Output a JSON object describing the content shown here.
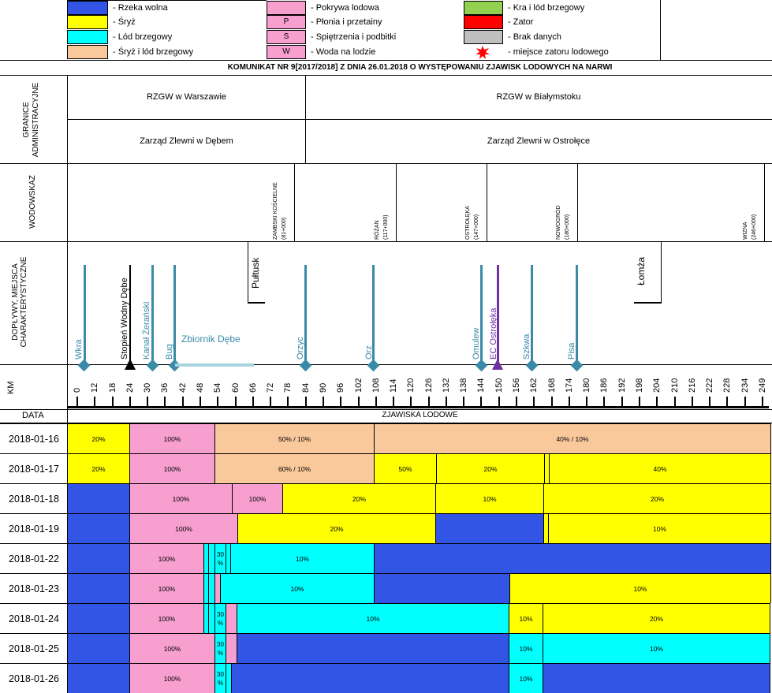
{
  "legend": [
    {
      "color": "#3355e6",
      "label": "- Rzeka wolna"
    },
    {
      "color": "#ffff00",
      "label": "- Śryż"
    },
    {
      "color": "#00ffff",
      "label": "- Lód brzegowy"
    },
    {
      "color": "#f9c89b",
      "label": "- Śryż i lód brzegowy"
    },
    {
      "color": "#f79fcf",
      "label": "- Pokrywa lodowa"
    },
    {
      "color": "#f79fcf",
      "code": "P",
      "label": "- Płonia i przetainy"
    },
    {
      "color": "#f79fcf",
      "code": "S",
      "label": "- Spiętrzenia i podbitki"
    },
    {
      "color": "#f79fcf",
      "code": "W",
      "label": "- Woda na lodzie"
    },
    {
      "color": "#92d050",
      "label": "- Kra i lód brzegowy"
    },
    {
      "color": "#ff0000",
      "label": "- Zator"
    },
    {
      "color": "#bfbfbf",
      "label": "- Brak danych"
    },
    {
      "icon": "red-star-icon",
      "color": "#ff0000",
      "label": "- miejsce zatoru lodowego"
    }
  ],
  "title": "KOMUNIKAT NR 9[2017/2018] Z DNIA 26.01.2018 O WYSTĘPOWANIU ZJAWISK LODOWYCH NA NARWI",
  "admin": {
    "label": "GRANICE ADMINISTRACYJNE",
    "rzgw": [
      "RZGW w Warszawie",
      "RZGW w Białymstoku"
    ],
    "zarzad": [
      "Zarząd Zlewni w Dębem",
      "Zarząd Zlewni w Ostrołęce"
    ]
  },
  "wodowskaz": {
    "label": "WODOWSKAZ",
    "gauges": [
      {
        "name": "ZAMBSKI KOŚCIELNE",
        "km": "(81+000)"
      },
      {
        "name": "RÓŻAN",
        "km": "(117+000)"
      },
      {
        "name": "OSTROŁĘKA",
        "km": "(147+000)"
      },
      {
        "name": "NOWOGRÓD",
        "km": "(180+000)"
      },
      {
        "name": "WIZNA",
        "km": "(246+000)"
      }
    ]
  },
  "doplywy": {
    "label": "DOPŁYWY, MIEJSCA CHARAKTERYSTYCZNE",
    "tributaries": [
      "Wkra",
      "Kanał Żerański",
      "Bug",
      "Orzyc",
      "Orz",
      "Omulew",
      "Szkwa",
      "Pisa"
    ],
    "dam": "Stopień Wodny Dębe",
    "reservoir": "Zbiornik Dębe",
    "plant": "EC Ostrołęka",
    "towns": [
      "Pułtusk",
      "Łomża"
    ]
  },
  "km": {
    "label": "KM",
    "ticks": [
      "0",
      "12",
      "18",
      "24",
      "30",
      "36",
      "42",
      "48",
      "54",
      "60",
      "66",
      "72",
      "78",
      "84",
      "90",
      "96",
      "102",
      "108",
      "114",
      "120",
      "126",
      "132",
      "138",
      "144",
      "150",
      "156",
      "162",
      "168",
      "174",
      "180",
      "186",
      "192",
      "198",
      "204",
      "210",
      "216",
      "222",
      "228",
      "234",
      "249"
    ]
  },
  "table": {
    "date_header": "DATA",
    "phen_header": "ZJAWISKA LODOWE",
    "rows": [
      {
        "date": "2018-01-16",
        "segs": [
          {
            "c": "Y",
            "w": 79,
            "t": "20%"
          },
          {
            "c": "P",
            "w": 108,
            "t": "100%"
          },
          {
            "c": "O",
            "w": 202,
            "t": "50% / 10%"
          },
          {
            "c": "O",
            "w": 503,
            "t": "40% / 10%"
          }
        ]
      },
      {
        "date": "2018-01-17",
        "segs": [
          {
            "c": "Y",
            "w": 79,
            "t": "20%"
          },
          {
            "c": "P",
            "w": 108,
            "t": "100%"
          },
          {
            "c": "O",
            "w": 202,
            "t": "60% / 10%"
          },
          {
            "c": "Y",
            "w": 79,
            "t": "50%"
          },
          {
            "c": "Y",
            "w": 137,
            "t": "20%"
          },
          {
            "c": "Y",
            "w": 6,
            "t": ""
          },
          {
            "c": "Y",
            "w": 281,
            "t": "40%"
          }
        ]
      },
      {
        "date": "2018-01-18",
        "segs": [
          {
            "c": "B",
            "w": 79,
            "t": ""
          },
          {
            "c": "P",
            "w": 130,
            "t": "100%"
          },
          {
            "c": "P",
            "w": 64,
            "t": "100%"
          },
          {
            "c": "Y",
            "w": 194,
            "t": "20%"
          },
          {
            "c": "Y",
            "w": 137,
            "t": "10%"
          },
          {
            "c": "Y",
            "w": 288,
            "t": "20%"
          }
        ]
      },
      {
        "date": "2018-01-19",
        "segs": [
          {
            "c": "B",
            "w": 79,
            "t": ""
          },
          {
            "c": "P",
            "w": 137,
            "t": "100%"
          },
          {
            "c": "Y",
            "w": 251,
            "t": "20%"
          },
          {
            "c": "B",
            "w": 137,
            "t": ""
          },
          {
            "c": "Y",
            "w": 6,
            "t": ""
          },
          {
            "c": "Y",
            "w": 282,
            "t": "10%"
          }
        ]
      },
      {
        "date": "2018-01-22",
        "segs": [
          {
            "c": "B",
            "w": 79,
            "t": ""
          },
          {
            "c": "P",
            "w": 94,
            "t": "100%"
          },
          {
            "c": "C",
            "w": 6,
            "t": ""
          },
          {
            "c": "C",
            "w": 8,
            "t": ""
          },
          {
            "c": "C",
            "w": 14,
            "t": "30 %"
          },
          {
            "c": "C",
            "w": 6,
            "t": ""
          },
          {
            "c": "C",
            "w": 182,
            "t": "10%"
          },
          {
            "c": "B",
            "w": 503,
            "t": ""
          }
        ]
      },
      {
        "date": "2018-01-23",
        "segs": [
          {
            "c": "B",
            "w": 79,
            "t": ""
          },
          {
            "c": "P",
            "w": 94,
            "t": "100%"
          },
          {
            "c": "C",
            "w": 6,
            "t": ""
          },
          {
            "c": "C",
            "w": 8,
            "t": ""
          },
          {
            "c": "P",
            "w": 7,
            "t": ""
          },
          {
            "c": "C",
            "w": 195,
            "t": "10%"
          },
          {
            "c": "B",
            "w": 172,
            "t": ""
          },
          {
            "c": "Y",
            "w": 331,
            "t": "10%"
          }
        ]
      },
      {
        "date": "2018-01-24",
        "segs": [
          {
            "c": "B",
            "w": 79,
            "t": ""
          },
          {
            "c": "P",
            "w": 94,
            "t": "100%"
          },
          {
            "c": "C",
            "w": 6,
            "t": ""
          },
          {
            "c": "C",
            "w": 8,
            "t": ""
          },
          {
            "c": "C",
            "w": 14,
            "t": "30 %"
          },
          {
            "c": "P",
            "w": 14,
            "t": ""
          },
          {
            "c": "C",
            "w": 345,
            "t": "10%"
          },
          {
            "c": "Y",
            "w": 43,
            "t": "10%"
          },
          {
            "c": "Y",
            "w": 288,
            "t": "20%"
          }
        ]
      },
      {
        "date": "2018-01-25",
        "segs": [
          {
            "c": "B",
            "w": 79,
            "t": ""
          },
          {
            "c": "P",
            "w": 108,
            "t": "100%"
          },
          {
            "c": "C",
            "w": 14,
            "t": "30 %"
          },
          {
            "c": "P",
            "w": 14,
            "t": ""
          },
          {
            "c": "B",
            "w": 345,
            "t": ""
          },
          {
            "c": "C",
            "w": 43,
            "t": "10%"
          },
          {
            "c": "C",
            "w": 288,
            "t": "10%"
          }
        ]
      },
      {
        "date": "2018-01-26",
        "segs": [
          {
            "c": "B",
            "w": 79,
            "t": ""
          },
          {
            "c": "P",
            "w": 108,
            "t": "100%"
          },
          {
            "c": "C",
            "w": 14,
            "t": "30 %"
          },
          {
            "c": "C",
            "w": 7,
            "t": ""
          },
          {
            "c": "B",
            "w": 352,
            "t": ""
          },
          {
            "c": "C",
            "w": 43,
            "t": "10%"
          },
          {
            "c": "B",
            "w": 288,
            "t": ""
          }
        ]
      }
    ]
  }
}
